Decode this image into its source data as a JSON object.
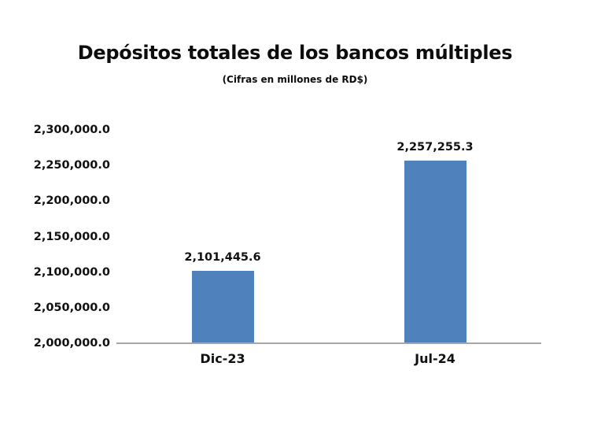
{
  "page": {
    "background": "#ffffff"
  },
  "chart_data": {
    "type": "bar",
    "title": "Depósitos totales de los bancos múltiples",
    "subtitle": "(Cifras en millones de RD$)",
    "categories": [
      "Dic-23",
      "Jul-24"
    ],
    "values": [
      2101445.6,
      2257255.3
    ],
    "value_labels": [
      "2,101,445.6",
      "2,257,255.3"
    ],
    "ylim": [
      2000000,
      2300000
    ],
    "ytick_step": 50000,
    "ytick_labels": [
      "2,000,000.0",
      "2,050,000.0",
      "2,100,000.0",
      "2,150,000.0",
      "2,200,000.0",
      "2,250,000.0",
      "2,300,000.0"
    ],
    "grid": false,
    "legend": false,
    "bar_color": "#4F81BD",
    "axis_line_color": "#A6A6A6",
    "text_color": "#111111"
  }
}
